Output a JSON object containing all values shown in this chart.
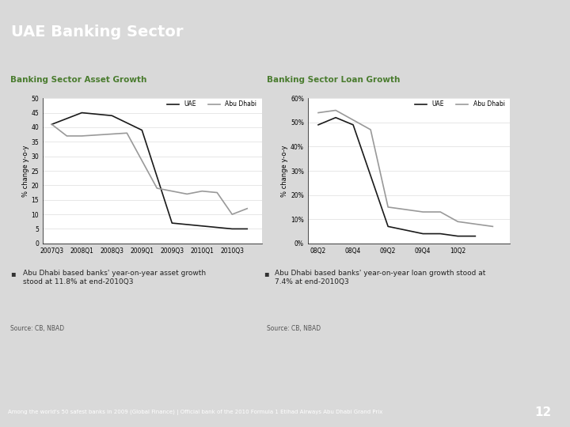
{
  "title": "UAE Banking Sector",
  "header_bg": "#2e7d32",
  "header_text_color": "#ffffff",
  "panel_label_bg": "#d6dfc8",
  "panel_label_color": "#4a7c2f",
  "chart_bg": "#ffffff",
  "main_bg": "#ffffff",
  "outer_bg": "#d9d9d9",
  "right_strip_bg": "#a0a0a0",
  "footer_bg": "#7a9e7e",
  "footer_text_color": "#ffffff",
  "pagenum_bg": "#2e7d32",
  "pagenum_color": "#ffffff",
  "footer_text": "Among the world's 50 safest banks in 2009 (Global Finance) | Official bank of the 2010 Formula 1 Etihad Airways Abu Dhabi Grand Prix",
  "page_num": "12",
  "left_panel_title": "Banking Sector Asset Growth",
  "right_panel_title": "Banking Sector Loan Growth",
  "source_text": "Source: CB, NBAD",
  "asset_x_labels": [
    "2007Q3",
    "2008Q1",
    "2008Q3",
    "2009Q1",
    "2009Q3",
    "2010Q1",
    "2010Q3"
  ],
  "asset_uae_x": [
    0,
    1,
    2,
    3,
    4,
    4.5,
    5,
    5.5,
    6,
    6.5
  ],
  "asset_uae_y": [
    41,
    45,
    44,
    39,
    7,
    6.5,
    6,
    5.5,
    5,
    5
  ],
  "asset_ad_x": [
    0,
    0.5,
    1,
    2.5,
    3.5,
    4,
    4.5,
    5,
    5.5,
    6,
    6.5
  ],
  "asset_ad_y": [
    41,
    37,
    37,
    38,
    19,
    18,
    17,
    18,
    17.5,
    10,
    12
  ],
  "asset_yticks": [
    0,
    5,
    10,
    15,
    20,
    25,
    30,
    35,
    40,
    45,
    50
  ],
  "asset_ylim": [
    0,
    50
  ],
  "loan_x_labels": [
    "08Q2",
    "08Q4",
    "09Q2",
    "09Q4",
    "10Q2"
  ],
  "loan_uae_x": [
    0,
    0.5,
    1,
    2,
    3,
    3.5,
    4,
    4.5
  ],
  "loan_uae_y": [
    49,
    52,
    49,
    7,
    4,
    4,
    3,
    3
  ],
  "loan_ad_x": [
    0,
    0.5,
    1.5,
    2,
    3,
    3.5,
    4,
    4.5,
    5
  ],
  "loan_ad_y": [
    54,
    55,
    47,
    15,
    13,
    13,
    9,
    8,
    7
  ],
  "loan_yticks": [
    0,
    10,
    20,
    30,
    40,
    50,
    60
  ],
  "loan_ylim": [
    0,
    60
  ],
  "uae_color": "#1a1a1a",
  "abudhabi_color": "#999999",
  "grid_color": "#dddddd",
  "line_width": 1.2,
  "bullet_left": "Abu Dhabi based banks' year-on-year asset growth\nstood at 11.8% at end-2010Q3",
  "bullet_right": "Abu Dhabi based banks' year-on-year loan growth stood at\n7.4% at end-2010Q3"
}
